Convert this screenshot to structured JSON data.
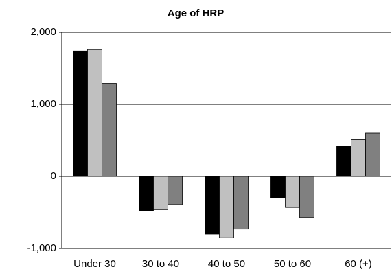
{
  "chart_data": {
    "type": "bar",
    "title": "Age of HRP",
    "categories": [
      "Under 30",
      "30 to 40",
      "40 to 50",
      "50 to 60",
      "60 (+)"
    ],
    "series": [
      {
        "color": "#000000",
        "values": [
          1740,
          -480,
          -800,
          -300,
          420
        ]
      },
      {
        "color": "#c0c0c0",
        "values": [
          1760,
          -460,
          -850,
          -430,
          510
        ]
      },
      {
        "color": "#808080",
        "values": [
          1290,
          -390,
          -730,
          -570,
          600
        ]
      }
    ],
    "ylim": [
      -1000,
      2000
    ],
    "yticks": [
      {
        "value": -1000,
        "label": "-1,000"
      },
      0,
      {
        "value": 1000,
        "label": "1,000"
      },
      {
        "value": 2000,
        "label": "2,000"
      }
    ],
    "grid": true
  }
}
